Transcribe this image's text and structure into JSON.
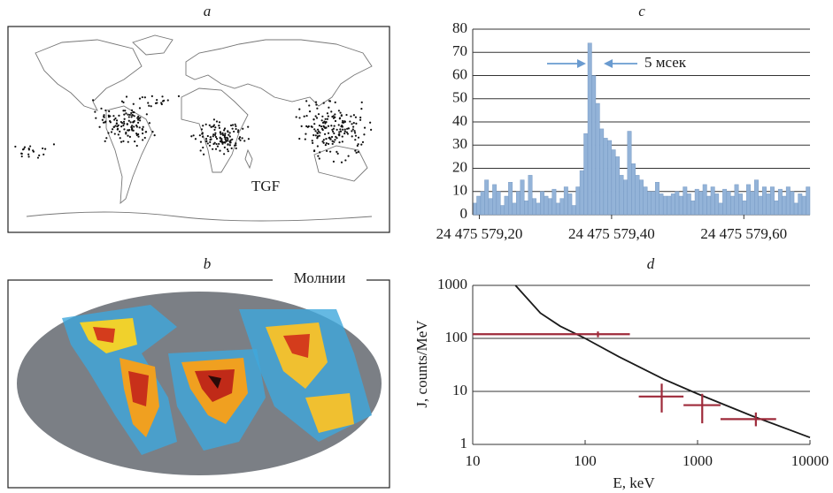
{
  "panels": {
    "a": {
      "label": "a",
      "annotation": "TGF"
    },
    "b": {
      "label": "b",
      "annotation": "Молнии"
    }
  },
  "chart_data": [
    {
      "type": "histogram",
      "title": "c",
      "color": "#93b3d8",
      "bins": [
        579.19,
        579.196,
        579.202,
        579.208,
        579.214,
        579.22,
        579.226,
        579.232,
        579.238,
        579.244,
        579.25,
        579.256,
        579.262,
        579.268,
        579.274,
        579.28,
        579.286,
        579.292,
        579.298,
        579.304,
        579.31,
        579.316,
        579.322,
        579.328,
        579.334,
        579.34,
        579.346,
        579.352,
        579.358,
        579.364,
        579.37,
        579.376,
        579.382,
        579.388,
        579.394,
        579.4,
        579.406,
        579.412,
        579.418,
        579.424,
        579.43,
        579.436,
        579.442,
        579.448,
        579.454,
        579.46,
        579.466,
        579.472,
        579.478,
        579.484,
        579.49,
        579.496,
        579.502,
        579.508,
        579.514,
        579.52,
        579.526,
        579.532,
        579.538,
        579.544,
        579.55,
        579.556,
        579.562,
        579.568,
        579.574,
        579.58,
        579.586,
        579.592,
        579.598,
        579.604,
        579.61,
        579.616,
        579.622,
        579.628,
        579.634,
        579.64,
        579.646,
        579.652,
        579.658,
        579.664,
        579.67,
        579.676,
        579.682,
        579.688,
        579.694,
        579.7
      ],
      "counts": [
        5,
        8,
        10,
        15,
        7,
        13,
        10,
        4,
        8,
        14,
        5,
        10,
        15,
        6,
        17,
        7,
        5,
        10,
        8,
        7,
        11,
        5,
        7,
        12,
        9,
        4,
        12,
        19,
        35,
        74,
        60,
        48,
        37,
        33,
        32,
        28,
        25,
        17,
        15,
        36,
        22,
        17,
        15,
        12,
        10,
        10,
        14,
        9,
        8,
        8,
        9,
        10,
        8,
        12,
        9,
        6,
        11,
        10,
        13,
        8,
        12,
        9,
        5,
        11,
        10,
        8,
        13,
        9,
        6,
        13,
        10,
        15,
        8,
        12,
        9,
        12,
        6,
        11,
        8,
        12,
        10,
        5,
        9,
        8,
        12
      ],
      "xlim": [
        579.19,
        579.7
      ],
      "xticks": [
        {
          "value": 579.2,
          "label": "24 475 579,20"
        },
        {
          "value": 579.4,
          "label": "24 475 579,40"
        },
        {
          "value": 579.6,
          "label": "24 475 579,60"
        }
      ],
      "ylim": [
        0,
        80
      ],
      "yticks": [
        0,
        10,
        20,
        30,
        40,
        50,
        60,
        70,
        80
      ],
      "grid": true,
      "annotation": "5 мсек"
    },
    {
      "type": "line",
      "title": "d",
      "xlabel": "E, keV",
      "ylabel": "J, counts/MeV",
      "xscale": "log",
      "yscale": "log",
      "grid": true,
      "xlim": [
        10,
        10000
      ],
      "xticks": [
        10,
        100,
        1000,
        10000
      ],
      "ylim": [
        1,
        1000
      ],
      "yticks": [
        1,
        10,
        100,
        1000
      ],
      "series": [
        {
          "color": "#1a1a1a",
          "x": [
            24,
            40,
            60,
            100,
            200,
            500,
            1000,
            3000,
            10000
          ],
          "values": [
            1000,
            300,
            170,
            100,
            45,
            17,
            9,
            3.5,
            1.35
          ]
        }
      ],
      "points": {
        "color": "#9e2a3a",
        "x": [
          130,
          480,
          1100,
          3300
        ],
        "values": [
          120,
          8,
          5.5,
          3
        ],
        "x_low": [
          10,
          300,
          750,
          1600
        ],
        "x_high": [
          250,
          750,
          1600,
          5000
        ],
        "y_low": [
          105,
          4,
          2.5,
          2.2
        ],
        "y_high": [
          135,
          14,
          9,
          4
        ]
      }
    }
  ]
}
